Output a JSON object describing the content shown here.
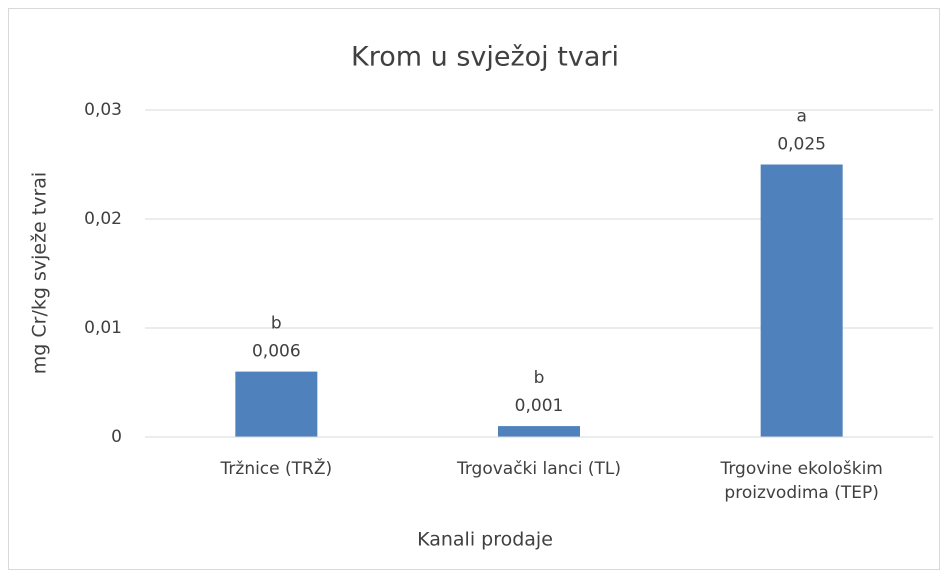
{
  "chart_data": {
    "type": "bar",
    "title": "Krom u svježoj tvari",
    "x_label": "Kanali prodaje",
    "y_label": "mg Cr/kg svježe tvrai",
    "categories": [
      "Tržnice (TRŽ)",
      "Trgovački lanci (TL)",
      "Trgovine ekološkim proizvodima (TEP)"
    ],
    "values": [
      0.006,
      0.001,
      0.025
    ],
    "value_labels": [
      "0,006",
      "0,001",
      "0,025"
    ],
    "significance_letters": [
      "b",
      "b",
      "a"
    ],
    "color": "#4f81bd",
    "ylim": [
      0,
      0.03
    ],
    "yticks": [
      0,
      {
        "value": 0.01,
        "label": "0,01"
      },
      {
        "value": 0.02,
        "label": "0,02"
      },
      {
        "value": 0.03,
        "label": "0,03"
      }
    ],
    "grid": true
  }
}
